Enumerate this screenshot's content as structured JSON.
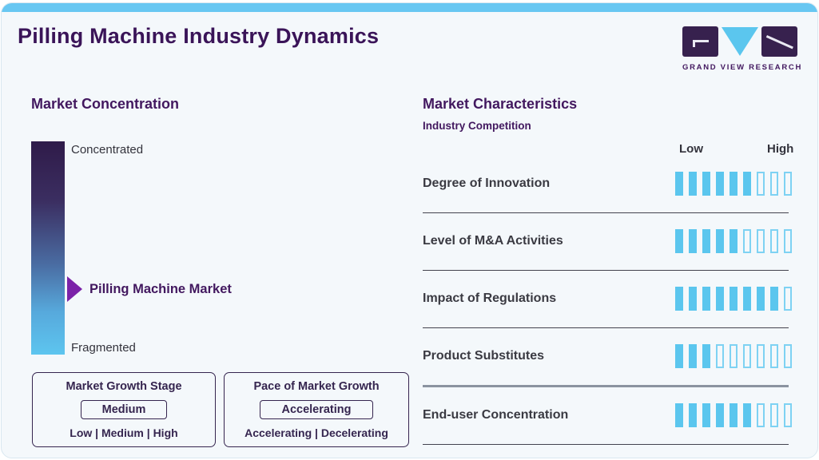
{
  "page": {
    "title": "Pilling Machine Industry Dynamics"
  },
  "logo": {
    "brand_name": "GRAND VIEW RESEARCH"
  },
  "market_concentration": {
    "heading": "Market Concentration",
    "scale_top_label": "Concentrated",
    "scale_bottom_label": "Fragmented",
    "pointer_label": "Pilling Machine Market",
    "growth_stage_box": {
      "title": "Market Growth Stage",
      "selected": "Medium",
      "options_label": "Low | Medium | High"
    },
    "pace_box": {
      "title": "Pace of Market Growth",
      "selected": "Accelerating",
      "options_label": "Accelerating | Decelerating"
    }
  },
  "market_characteristics": {
    "heading": "Market Characteristics",
    "subheading": "Industry Competition",
    "scale_low_label": "Low",
    "scale_high_label": "High",
    "rows": [
      {
        "label": "Degree of Innovation",
        "filled": 6,
        "total": 9
      },
      {
        "label": "Level of M&A Activities",
        "filled": 5,
        "total": 9
      },
      {
        "label": "Impact of Regulations",
        "filled": 8,
        "total": 9
      },
      {
        "label": "Product Substitutes",
        "filled": 3,
        "total": 9
      },
      {
        "label": "End-user Concentration",
        "filled": 6,
        "total": 9
      }
    ]
  },
  "chart_data": {
    "type": "bar",
    "title": "Market Characteristics — Industry Competition",
    "categories": [
      "Degree of Innovation",
      "Level of M&A Activities",
      "Impact of Regulations",
      "Product Substitutes",
      "End-user Concentration"
    ],
    "series": [
      {
        "name": "Rating ticks filled (scale Low→High)",
        "values": [
          6,
          5,
          8,
          3,
          6
        ]
      }
    ],
    "scale": {
      "min_label": "Low",
      "max_label": "High",
      "ticks_total": 9
    },
    "annotations": {
      "market_concentration_scale": [
        "Concentrated",
        "Fragmented"
      ],
      "market_position_marker": "Pilling Machine Market",
      "market_position_fraction_from_concentrated": 0.69,
      "market_growth_stage": "Medium",
      "pace_of_market_growth": "Accelerating"
    }
  },
  "colors": {
    "accent_blue": "#5bc6ee",
    "top_bar_blue": "#68c7f2",
    "title_purple": "#3a1458",
    "heading_purple": "#42185f",
    "arrow_purple": "#7b22a8",
    "text_dark": "#3a3a42",
    "gradient_top": "#2f1b49",
    "gradient_bottom": "#5dc5ef"
  }
}
